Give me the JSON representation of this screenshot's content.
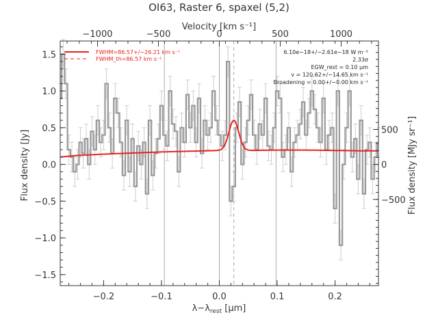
{
  "chart_data": {
    "type": "line",
    "title": "OI63, Raster 6, spaxel (5,2)",
    "xlabel_main": "λ−λ",
    "xlabel_sub": "rest",
    "xlabel_unit": " [μm]",
    "ylabel": "Flux density [Jy]",
    "ylabel_right": "Flux density [MJy sr⁻¹]",
    "xlabel_top": "Velocity [km s⁻¹]",
    "xlim": [
      -0.275,
      0.275
    ],
    "ylim": [
      -1.65,
      1.68
    ],
    "x_ticks": [
      -0.2,
      -0.1,
      0.0,
      0.1,
      0.2
    ],
    "x_tick_labels": [
      "−0.2",
      "−0.1",
      "0.0",
      "0.1",
      "0.2"
    ],
    "y_ticks": [
      -1.5,
      -1.0,
      -0.5,
      0.0,
      0.5,
      1.0,
      1.5
    ],
    "y_tick_labels": [
      "−1.5",
      "−1.0",
      "−0.5",
      "0.0",
      "0.5",
      "1.0",
      "1.5"
    ],
    "top_ticks_vel": [
      -1000,
      -500,
      0,
      500,
      1000
    ],
    "top_tick_labels": [
      "−1000",
      "−500",
      "0",
      "500",
      "1000"
    ],
    "right_ticks_msr": [
      -500,
      0,
      500
    ],
    "right_tick_labels": [
      "−500",
      "0",
      "500"
    ],
    "right_scale_msr_per_jy": 1050,
    "vel_per_um": 4750,
    "line_center": 0.025,
    "line_amplitude": 0.41,
    "line_sigma": 0.0085,
    "continuum_x": [
      -0.275,
      -0.25,
      -0.2,
      -0.15,
      -0.1,
      -0.05,
      0.0,
      0.05,
      0.1,
      0.15,
      0.2,
      0.25,
      0.275
    ],
    "continuum_y": [
      0.1,
      0.12,
      0.14,
      0.155,
      0.17,
      0.18,
      0.19,
      0.19,
      0.195,
      0.195,
      0.19,
      0.185,
      0.185
    ],
    "vlines": [
      -0.095,
      0.0,
      0.098
    ],
    "dashed_vline": 0.025,
    "legend": [
      {
        "label": "FWHM=86.57+/−26.21 km s⁻¹",
        "style": "solid",
        "color": "#e8221c"
      },
      {
        "label": "FWHM_th=86.57 km s⁻¹",
        "style": "dashed",
        "color": "#e8221c"
      }
    ],
    "legend_placement": "top-left",
    "annotations": [
      "6.10e−18+/−2.61e−18 W m⁻²",
      "2.33σ",
      "EGW_rest = 0.10 μm",
      "v = 120.62+/−14.65 km s⁻¹",
      "Broadening = 0.00+/−0.00 km s⁻¹"
    ],
    "series": [
      {
        "name": "spectrum",
        "color": "#999999",
        "x": [
          -0.275,
          -0.27,
          -0.265,
          -0.26,
          -0.255,
          -0.25,
          -0.245,
          -0.24,
          -0.235,
          -0.23,
          -0.225,
          -0.22,
          -0.215,
          -0.21,
          -0.205,
          -0.2,
          -0.195,
          -0.19,
          -0.185,
          -0.18,
          -0.175,
          -0.17,
          -0.165,
          -0.16,
          -0.155,
          -0.15,
          -0.145,
          -0.14,
          -0.135,
          -0.13,
          -0.125,
          -0.12,
          -0.115,
          -0.11,
          -0.105,
          -0.1,
          -0.095,
          -0.09,
          -0.085,
          -0.08,
          -0.075,
          -0.07,
          -0.065,
          -0.06,
          -0.055,
          -0.05,
          -0.045,
          -0.04,
          -0.035,
          -0.03,
          -0.025,
          -0.02,
          -0.015,
          -0.01,
          -0.005,
          0.0,
          0.005,
          0.01,
          0.015,
          0.02,
          0.025,
          0.03,
          0.035,
          0.04,
          0.045,
          0.05,
          0.055,
          0.06,
          0.065,
          0.07,
          0.075,
          0.08,
          0.085,
          0.09,
          0.095,
          0.1,
          0.105,
          0.11,
          0.115,
          0.12,
          0.125,
          0.13,
          0.135,
          0.14,
          0.145,
          0.15,
          0.155,
          0.16,
          0.165,
          0.17,
          0.175,
          0.18,
          0.185,
          0.19,
          0.195,
          0.2,
          0.205,
          0.21,
          0.215,
          0.22,
          0.225,
          0.23,
          0.235,
          0.24,
          0.245,
          0.25,
          0.255,
          0.26,
          0.265,
          0.27,
          0.275
        ],
        "y": [
          0.9,
          1.5,
          1.1,
          0.2,
          0.1,
          -0.1,
          0.0,
          0.3,
          0.15,
          0.35,
          0.0,
          0.45,
          0.2,
          0.6,
          0.3,
          0.4,
          1.1,
          0.5,
          0.15,
          0.9,
          0.7,
          0.3,
          -0.15,
          0.6,
          -0.1,
          0.35,
          -0.3,
          0.25,
          0.0,
          0.3,
          -0.4,
          0.6,
          -0.15,
          0.15,
          0.35,
          0.8,
          0.4,
          0.25,
          1.0,
          0.55,
          0.45,
          -0.1,
          0.5,
          0.3,
          0.95,
          0.5,
          0.8,
          0.3,
          0.9,
          0.15,
          0.6,
          0.4,
          0.5,
          1.0,
          0.6,
          0.4,
          0.25,
          0.4,
          1.4,
          -0.5,
          -0.3,
          0.5,
          0.85,
          0.0,
          0.3,
          0.6,
          0.95,
          0.4,
          0.2,
          0.55,
          0.4,
          0.9,
          0.25,
          0.2,
          0.5,
          1.0,
          0.9,
          0.1,
          0.2,
          0.5,
          -0.1,
          0.3,
          0.4,
          0.55,
          0.85,
          0.4,
          0.7,
          1.0,
          0.75,
          0.5,
          0.3,
          0.9,
          0.2,
          0.4,
          0.5,
          -0.6,
          1.0,
          -1.1,
          0.0,
          0.5,
          1.0,
          0.1,
          0.35,
          -0.2,
          0.6,
          -0.4,
          0.2,
          0.3,
          -0.2,
          0.1,
          0.3
        ],
        "err": [
          0.2,
          0.2,
          0.2,
          0.2,
          0.2,
          0.2,
          0.2,
          0.2,
          0.2,
          0.2,
          0.2,
          0.2,
          0.2,
          0.2,
          0.2,
          0.2,
          0.2,
          0.2,
          0.2,
          0.2,
          0.2,
          0.2,
          0.2,
          0.2,
          0.2,
          0.2,
          0.2,
          0.2,
          0.2,
          0.2,
          0.2,
          0.2,
          0.2,
          0.2,
          0.2,
          0.2,
          0.2,
          0.2,
          0.2,
          0.2,
          0.2,
          0.2,
          0.2,
          0.2,
          0.2,
          0.2,
          0.2,
          0.2,
          0.2,
          0.2,
          0.2,
          0.2,
          0.2,
          0.2,
          0.2,
          0.2,
          0.2,
          0.2,
          0.2,
          0.2,
          0.2,
          0.2,
          0.2,
          0.2,
          0.2,
          0.2,
          0.2,
          0.2,
          0.2,
          0.2,
          0.2,
          0.2,
          0.2,
          0.2,
          0.2,
          0.2,
          0.2,
          0.2,
          0.2,
          0.2,
          0.2,
          0.2,
          0.2,
          0.2,
          0.2,
          0.2,
          0.2,
          0.2,
          0.2,
          0.2,
          0.2,
          0.2,
          0.2,
          0.2,
          0.2,
          0.2,
          0.2,
          0.2,
          0.2,
          0.2,
          0.2,
          0.2,
          0.2,
          0.2,
          0.2,
          0.2,
          0.2,
          0.2,
          0.2,
          0.2,
          0.2
        ]
      },
      {
        "name": "fit",
        "color": "#e8221c"
      }
    ]
  }
}
